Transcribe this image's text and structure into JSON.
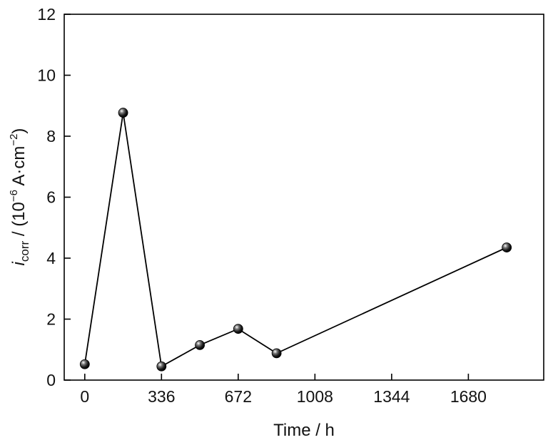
{
  "chart_data": {
    "type": "line",
    "title": "",
    "x": [
      0,
      168,
      336,
      504,
      672,
      840,
      1848
    ],
    "series": [
      {
        "values": [
          0.52,
          8.77,
          0.45,
          1.15,
          1.68,
          0.88,
          4.35
        ]
      }
    ],
    "xlim": [
      -90,
      2010
    ],
    "ylim": [
      0,
      12
    ],
    "xticks": [
      0,
      336,
      672,
      1008,
      1344,
      1680
    ],
    "yticks": [
      0,
      2,
      4,
      6,
      8,
      10,
      12
    ],
    "xticks_labels": [
      "0",
      "336",
      "672",
      "1008",
      "1344",
      "1680"
    ],
    "yticks_labels": [
      "0",
      "2",
      "4",
      "6",
      "8",
      "10",
      "12"
    ],
    "xlabel": "Time / h",
    "ylabel": {
      "var": "i",
      "sub": "corr",
      "pre": " / (10",
      "exp1": "−6",
      "mid": " A·cm",
      "exp2": "−2",
      "post": ")"
    },
    "grid": false,
    "colors": {
      "line": "#000000",
      "marker": "#000000",
      "axis": "#000000"
    }
  }
}
